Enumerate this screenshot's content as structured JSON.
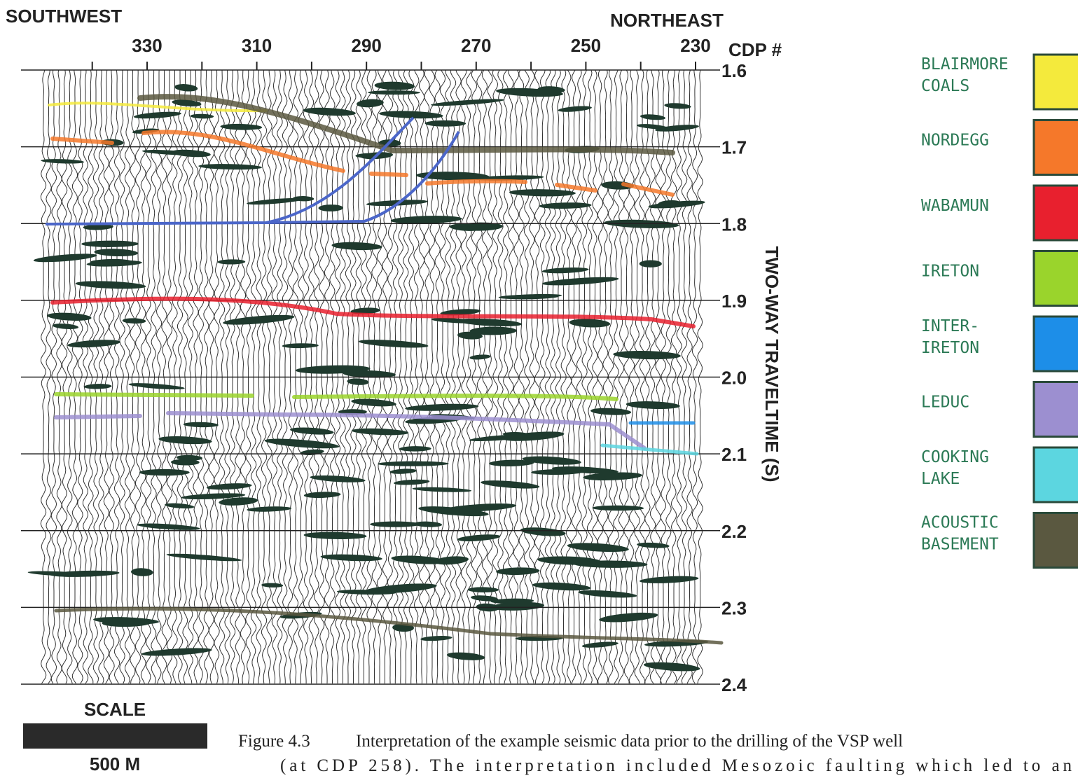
{
  "figure": {
    "left_label": "SOUTHWEST",
    "right_label": "NORTHEAST",
    "cdp_label": "CDP #",
    "cdp_ticks": [
      "330",
      "310",
      "290",
      "270",
      "250",
      "230"
    ],
    "time_ticks": [
      "1.6",
      "1.7",
      "1.8",
      "1.9",
      "2.0",
      "2.1",
      "2.2",
      "2.3",
      "2.4"
    ],
    "time_label": "TWO-WAY TRAVELTIME  (S)",
    "legend": [
      {
        "lines": [
          "BLAIRMORE",
          "COALS"
        ],
        "color": "#f4ea3c"
      },
      {
        "lines": [
          "NORDEGG"
        ],
        "color": "#f5782a"
      },
      {
        "lines": [
          "WABAMUN"
        ],
        "color": "#e8202e"
      },
      {
        "lines": [
          "IRETON"
        ],
        "color": "#9ad42c"
      },
      {
        "lines": [
          "INTER-",
          "IRETON"
        ],
        "color": "#1d8ee8"
      },
      {
        "lines": [
          "LEDUC"
        ],
        "color": "#9c8fd0"
      },
      {
        "lines": [
          "COOKING",
          "LAKE"
        ],
        "color": "#5cd6e0"
      },
      {
        "lines": [
          "ACOUSTIC",
          "BASEMENT"
        ],
        "color": "#5a5840"
      }
    ],
    "scale": {
      "title": "SCALE",
      "value": "500 M"
    }
  },
  "caption": {
    "number": "Figure 4.3",
    "lines": [
      "Interpretation of the example seismic data prior to the drilling of the VSP well",
      "(at CDP 258).  The interpretation included Mesozoic faulting which led to an"
    ]
  }
}
